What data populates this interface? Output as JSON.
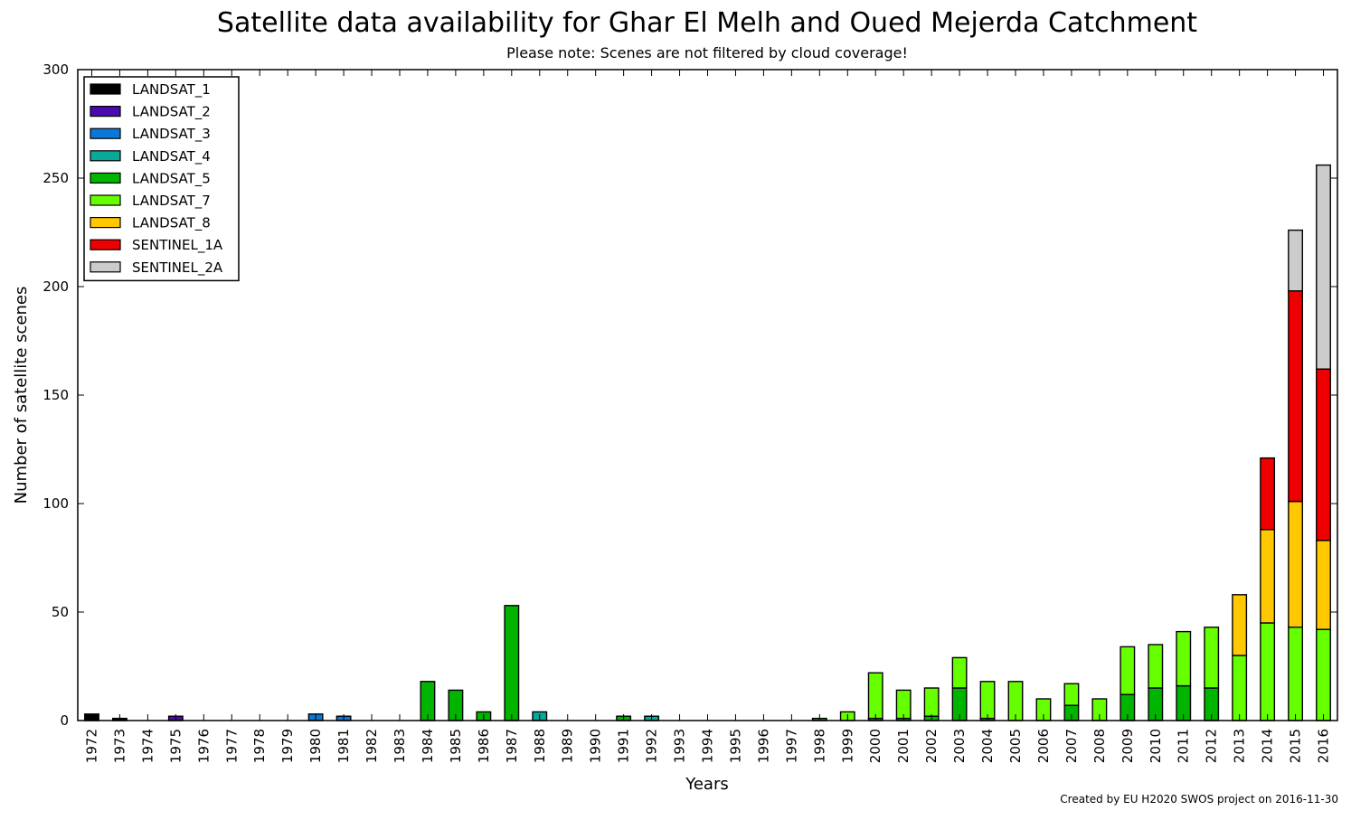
{
  "chart_data": {
    "type": "bar",
    "stacked": true,
    "title": "Satellite data availability for Ghar El Melh and Oued Mejerda Catchment",
    "subtitle": "Please note: Scenes are not filtered by cloud coverage!",
    "xlabel": "Years",
    "ylabel": "Number of satellite scenes",
    "ylim": [
      0,
      300
    ],
    "yticks": [
      0,
      50,
      100,
      150,
      200,
      250,
      300
    ],
    "legend_position": "top-left",
    "credit": "Created by EU H2020 SWOS project on 2016-11-30",
    "categories": [
      "1972",
      "1973",
      "1974",
      "1975",
      "1976",
      "1977",
      "1978",
      "1979",
      "1980",
      "1981",
      "1982",
      "1983",
      "1984",
      "1985",
      "1986",
      "1987",
      "1988",
      "1989",
      "1990",
      "1991",
      "1992",
      "1993",
      "1994",
      "1995",
      "1996",
      "1997",
      "1998",
      "1999",
      "2000",
      "2001",
      "2002",
      "2003",
      "2004",
      "2005",
      "2006",
      "2007",
      "2008",
      "2009",
      "2010",
      "2011",
      "2012",
      "2013",
      "2014",
      "2015",
      "2016"
    ],
    "series": [
      {
        "name": "LANDSAT_1",
        "color": "#000000",
        "values": [
          3,
          1,
          0,
          0,
          0,
          0,
          0,
          0,
          0,
          0,
          0,
          0,
          0,
          0,
          0,
          0,
          0,
          0,
          0,
          0,
          0,
          0,
          0,
          0,
          0,
          0,
          0,
          0,
          0,
          0,
          0,
          0,
          0,
          0,
          0,
          0,
          0,
          0,
          0,
          0,
          0,
          0,
          0,
          0,
          0
        ]
      },
      {
        "name": "LANDSAT_2",
        "color": "#4a0ab0",
        "values": [
          0,
          0,
          0,
          2,
          0,
          0,
          0,
          0,
          0,
          0,
          0,
          0,
          0,
          0,
          0,
          0,
          0,
          0,
          0,
          0,
          0,
          0,
          0,
          0,
          0,
          0,
          0,
          0,
          0,
          0,
          0,
          0,
          0,
          0,
          0,
          0,
          0,
          0,
          0,
          0,
          0,
          0,
          0,
          0,
          0
        ]
      },
      {
        "name": "LANDSAT_3",
        "color": "#0a78d8",
        "values": [
          0,
          0,
          0,
          0,
          0,
          0,
          0,
          0,
          3,
          2,
          0,
          0,
          0,
          0,
          0,
          0,
          0,
          0,
          0,
          0,
          0,
          0,
          0,
          0,
          0,
          0,
          0,
          0,
          0,
          0,
          0,
          0,
          0,
          0,
          0,
          0,
          0,
          0,
          0,
          0,
          0,
          0,
          0,
          0,
          0
        ]
      },
      {
        "name": "LANDSAT_4",
        "color": "#0aa898",
        "values": [
          0,
          0,
          0,
          0,
          0,
          0,
          0,
          0,
          0,
          0,
          0,
          0,
          0,
          0,
          0,
          0,
          4,
          0,
          0,
          0,
          2,
          0,
          0,
          0,
          0,
          0,
          0,
          0,
          0,
          0,
          0,
          0,
          0,
          0,
          0,
          0,
          0,
          0,
          0,
          0,
          0,
          0,
          0,
          0,
          0
        ]
      },
      {
        "name": "LANDSAT_5",
        "color": "#00b400",
        "values": [
          0,
          0,
          0,
          0,
          0,
          0,
          0,
          0,
          0,
          0,
          0,
          0,
          18,
          14,
          4,
          53,
          0,
          0,
          0,
          2,
          0,
          0,
          0,
          0,
          0,
          0,
          1,
          0,
          1,
          1,
          2,
          15,
          1,
          0,
          0,
          7,
          0,
          12,
          15,
          16,
          15,
          0,
          0,
          0,
          0
        ]
      },
      {
        "name": "LANDSAT_7",
        "color": "#66ff00",
        "values": [
          0,
          0,
          0,
          0,
          0,
          0,
          0,
          0,
          0,
          0,
          0,
          0,
          0,
          0,
          0,
          0,
          0,
          0,
          0,
          0,
          0,
          0,
          0,
          0,
          0,
          0,
          0,
          4,
          21,
          13,
          13,
          14,
          17,
          18,
          10,
          10,
          10,
          22,
          20,
          25,
          28,
          30,
          45,
          43,
          42
        ]
      },
      {
        "name": "LANDSAT_8",
        "color": "#ffc800",
        "values": [
          0,
          0,
          0,
          0,
          0,
          0,
          0,
          0,
          0,
          0,
          0,
          0,
          0,
          0,
          0,
          0,
          0,
          0,
          0,
          0,
          0,
          0,
          0,
          0,
          0,
          0,
          0,
          0,
          0,
          0,
          0,
          0,
          0,
          0,
          0,
          0,
          0,
          0,
          0,
          0,
          0,
          28,
          43,
          58,
          41
        ]
      },
      {
        "name": "SENTINEL_1A",
        "color": "#ee0000",
        "values": [
          0,
          0,
          0,
          0,
          0,
          0,
          0,
          0,
          0,
          0,
          0,
          0,
          0,
          0,
          0,
          0,
          0,
          0,
          0,
          0,
          0,
          0,
          0,
          0,
          0,
          0,
          0,
          0,
          0,
          0,
          0,
          0,
          0,
          0,
          0,
          0,
          0,
          0,
          0,
          0,
          0,
          0,
          33,
          97,
          79
        ]
      },
      {
        "name": "SENTINEL_2A",
        "color": "#cccccc",
        "values": [
          0,
          0,
          0,
          0,
          0,
          0,
          0,
          0,
          0,
          0,
          0,
          0,
          0,
          0,
          0,
          0,
          0,
          0,
          0,
          0,
          0,
          0,
          0,
          0,
          0,
          0,
          0,
          0,
          0,
          0,
          0,
          0,
          0,
          0,
          0,
          0,
          0,
          0,
          0,
          0,
          0,
          0,
          0,
          28,
          94
        ]
      }
    ]
  }
}
